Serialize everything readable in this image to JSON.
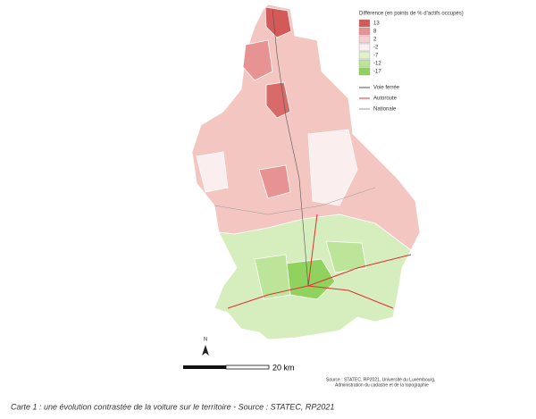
{
  "legend": {
    "title": "Différence (en points de % d'actifs occupés)",
    "classes": [
      {
        "value": 13,
        "color": "#d45a5a"
      },
      {
        "value": 8,
        "color": "#e89393"
      },
      {
        "value": 2,
        "color": "#f6cfcf"
      },
      {
        "value": -2,
        "color": "#fbeeee"
      },
      {
        "value": -7,
        "color": "#dff2cc"
      },
      {
        "value": -12,
        "color": "#bde59a"
      },
      {
        "value": -17,
        "color": "#8fd35e"
      }
    ],
    "lines": [
      {
        "label": "Voie ferrée",
        "color": "#555555"
      },
      {
        "label": "Autoroute",
        "color": "#e03030"
      },
      {
        "label": "Nationale",
        "color": "#999999"
      }
    ]
  },
  "north": "N",
  "scale": "20 km",
  "source": [
    "Source : STATEC, RP2021, Université du Luxembourg,",
    "Administration du cadastre et de la topographie"
  ],
  "caption": "Carte 1 : une évolution contrastée de la voiture sur le territoire - Source : STATEC, RP2021"
}
